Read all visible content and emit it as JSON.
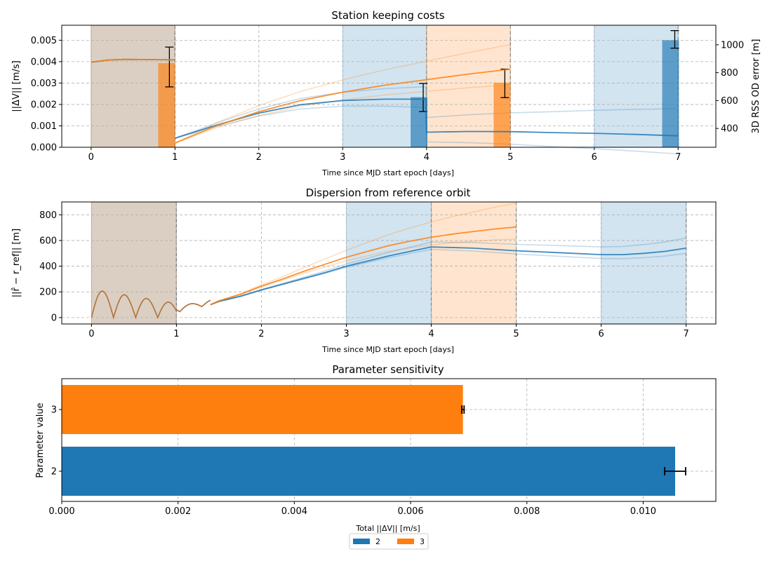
{
  "chart_data": [
    {
      "type": "line",
      "title": "Station keeping costs",
      "xlabel": "Time since MJD start epoch [days]",
      "ylabel": "||ΔV|| [m/s]",
      "y2label": "3D RSS OD error [m]",
      "xlim": [
        -0.35,
        7.45
      ],
      "ylim": [
        0,
        0.0057
      ],
      "y2lim": [
        265,
        1140
      ],
      "xticks": [
        0,
        1,
        2,
        3,
        4,
        5,
        6,
        7
      ],
      "yticks": [
        "0.000",
        "0.001",
        "0.002",
        "0.003",
        "0.004",
        "0.005"
      ],
      "y2ticks": [
        400,
        600,
        800,
        1000
      ],
      "grid": true,
      "shaded_intervals": [
        {
          "series": "2",
          "from": 0,
          "to": 1
        },
        {
          "series": "3",
          "from": 0,
          "to": 1
        },
        {
          "series": "2",
          "from": 3,
          "to": 4
        },
        {
          "series": "3",
          "from": 4,
          "to": 5
        },
        {
          "series": "2",
          "from": 6,
          "to": 7
        }
      ],
      "dv_bars": [
        {
          "series": "3",
          "t": 1,
          "value": 0.00393,
          "err_low": 0.00282,
          "err_high": 0.00468
        },
        {
          "series": "2",
          "t": 4,
          "value": 0.00234,
          "err_low": 0.00167,
          "err_high": 0.00298
        },
        {
          "series": "3",
          "t": 5,
          "value": 0.00302,
          "err_low": 0.00232,
          "err_high": 0.00365
        },
        {
          "series": "2",
          "t": 7,
          "value": 0.005,
          "err_low": 0.00463,
          "err_high": 0.00545
        }
      ],
      "od_error": [
        {
          "name": "2",
          "x": [
            0,
            0.2,
            0.4,
            0.6,
            0.8,
            1.0,
            1.0,
            1.5,
            2.0,
            2.5,
            3.0,
            3.5,
            3.99,
            4.0,
            4.5,
            5.0,
            5.5,
            6.0,
            6.5,
            7.0
          ],
          "y": [
            875,
            890,
            895,
            894,
            893,
            892,
            330,
            425,
            510,
            570,
            600,
            610,
            610,
            373,
            378,
            377,
            370,
            365,
            357,
            347
          ]
        },
        {
          "name": "3",
          "x": [
            0,
            0.2,
            0.4,
            0.6,
            0.8,
            1.0,
            1.0,
            1.5,
            2.0,
            2.5,
            3.0,
            3.5,
            4.0,
            4.5,
            5.0
          ],
          "y": [
            875,
            890,
            895,
            894,
            893,
            892,
            295,
            420,
            520,
            600,
            660,
            710,
            750,
            790,
            825
          ]
        }
      ]
    },
    {
      "type": "line",
      "title": "Dispersion from reference orbit",
      "xlabel": "Time since MJD start epoch [days]",
      "ylabel": "||r̂ − r_ref|| [m]",
      "xlim": [
        -0.35,
        7.35
      ],
      "ylim": [
        -50,
        900
      ],
      "xticks": [
        0,
        1,
        2,
        3,
        4,
        5,
        6,
        7
      ],
      "yticks": [
        0,
        200,
        400,
        600,
        800
      ],
      "grid": true,
      "shaded_intervals": [
        {
          "series": "2",
          "from": 0,
          "to": 1
        },
        {
          "series": "3",
          "from": 0,
          "to": 1
        },
        {
          "series": "2",
          "from": 3,
          "to": 4
        },
        {
          "series": "3",
          "from": 4,
          "to": 5
        },
        {
          "series": "2",
          "from": 6,
          "to": 7
        }
      ],
      "series": [
        {
          "name": "2",
          "x": [
            1.4,
            1.5,
            1.75,
            2.0,
            2.25,
            2.5,
            2.75,
            3.0,
            3.25,
            3.5,
            3.75,
            4.0,
            4.5,
            5.0,
            5.5,
            6.0,
            6.25,
            6.5,
            6.75,
            7.0
          ],
          "y": [
            100,
            125,
            165,
            215,
            260,
            305,
            350,
            400,
            440,
            480,
            515,
            550,
            540,
            520,
            505,
            490,
            490,
            500,
            515,
            540
          ]
        },
        {
          "name": "3",
          "x": [
            1.4,
            1.5,
            1.75,
            2.0,
            2.25,
            2.5,
            2.75,
            3.0,
            3.25,
            3.5,
            3.75,
            4.0,
            4.25,
            4.5,
            4.75,
            5.0
          ],
          "y": [
            100,
            130,
            180,
            245,
            300,
            360,
            415,
            470,
            515,
            560,
            595,
            625,
            650,
            670,
            690,
            705
          ]
        }
      ]
    },
    {
      "type": "bar",
      "orientation": "horizontal",
      "title": "Parameter sensitivity",
      "xlabel": "Total ||ΔV|| [m/s]",
      "ylabel": "Parameter value",
      "xlim": [
        0,
        0.01125
      ],
      "xticks": [
        "0.000",
        "0.002",
        "0.004",
        "0.006",
        "0.008",
        "0.010"
      ],
      "categories": [
        "2",
        "3"
      ],
      "values": [
        0.01055,
        0.0069
      ],
      "errors": [
        0.00018,
        2e-05
      ],
      "legend": [
        "2",
        "3"
      ],
      "legend_position": "bottom-center",
      "grid": true
    }
  ],
  "colors": {
    "series_2": "#1f77b4",
    "series_3": "#ff7f0e"
  }
}
